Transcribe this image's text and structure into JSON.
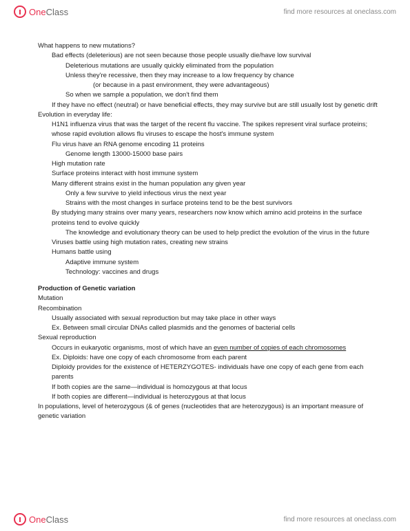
{
  "brand": {
    "one": "One",
    "class": "Class",
    "tagline": "find more resources at oneclass.com"
  },
  "content": {
    "p1": "What happens to new mutations?",
    "p2": "Bad effects (deleterious) are not seen because those people usually die/have low survival",
    "p3": "Deleterious mutations are usually quickly eliminated from the population",
    "p4": "Unless they're recessive, then they may increase to a low frequency by chance",
    "p5": "(or because in a past environment, they were advantageous)",
    "p6": "So when we sample a population, we don't find them",
    "p7": "If they have no effect (neutral) or have beneficial effects, they may survive but are still usually lost by genetic drift",
    "p8": "Evolution in everyday life:",
    "p9": "H1N1 influenza virus that was the target of the recent flu vaccine. The spikes represent viral surface proteins; whose rapid evolution allows flu viruses to escape the host's immune system",
    "p10": "Flu virus have an RNA genome encoding 11 proteins",
    "p11": "Genome length 13000-15000 base pairs",
    "p12": "High mutation rate",
    "p13": "Surface proteins interact with host immune system",
    "p14": "Many different strains exist in the human population any given year",
    "p15": "Only a few survive to yield infectious virus the next year",
    "p16": "Strains with the most changes in surface proteins tend to be the best survivors",
    "p17": "By studying many strains over many years, researchers now know which amino acid proteins in the surface proteins tend to evolve quickly",
    "p18": "The knowledge and evolutionary theory can be used to help predict the evolution of the virus in the future",
    "p19": "Viruses battle using high mutation rates, creating new strains",
    "p20": "Humans battle using",
    "p21": "Adaptive immune system",
    "p22": "Technology: vaccines and drugs",
    "p23": "Production of Genetic variation",
    "p24": "Mutation",
    "p25": "Recombination",
    "p26": "Usually associated with sexual reproduction but may take place in other ways",
    "p27": "Ex. Between small circular DNAs called plasmids and the genomes of bacterial cells",
    "p28": "Sexual reproduction",
    "p29a": "Occurs in eukaryotic organisms, most of which have an ",
    "p29b": "even number of copies of each chromosomes",
    "p30": "Ex. Diploids: have one copy of each chromosome from each parent",
    "p31": "Diploidy provides for the existence of HETERZYGOTES- individuals have one copy of each gene from each parents",
    "p32": "If both copies are the same—individual is homozygous at that locus",
    "p33": "If both copies are different—individual is heterozygous at that locus",
    "p34": "In populations, level of heterozygous (& of genes (nucleotides that are heterozygous) is an important measure of genetic variation"
  }
}
